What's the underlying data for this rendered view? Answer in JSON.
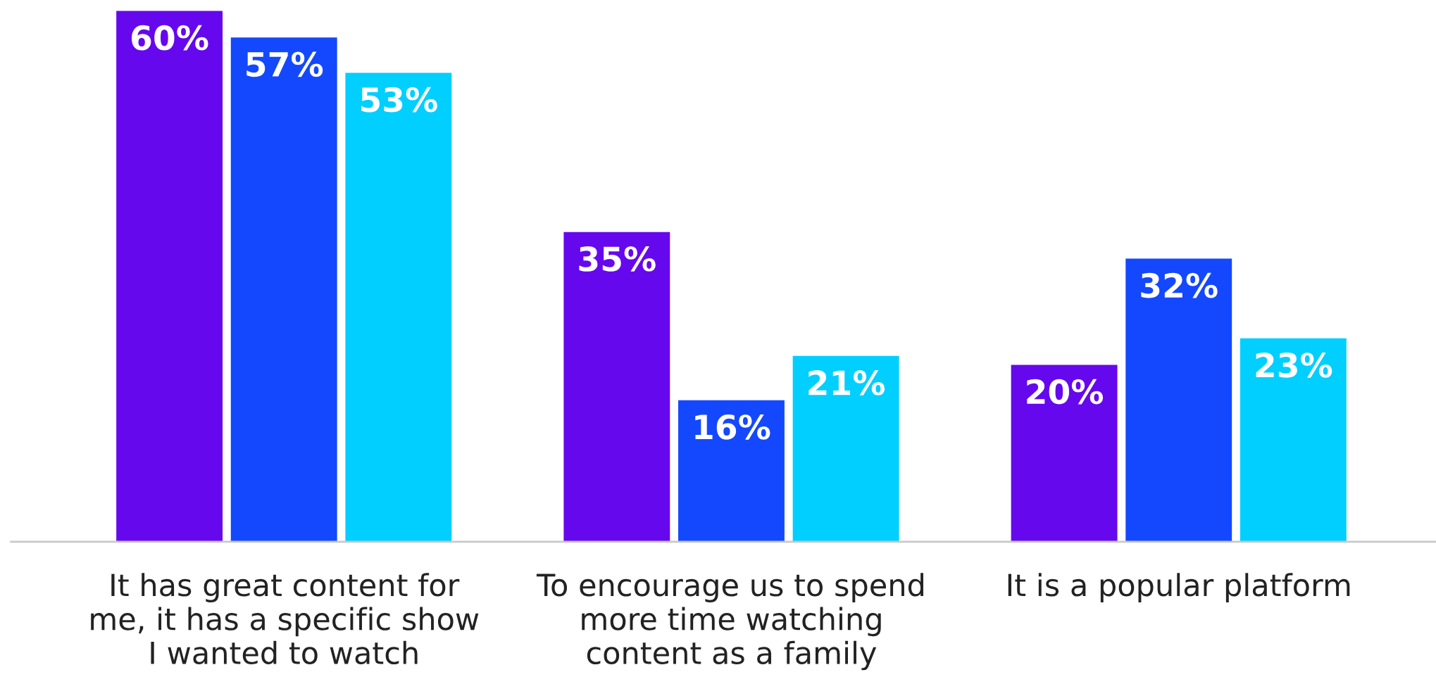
{
  "chart_data": {
    "type": "bar",
    "categories": [
      "It has great content for\nme, it has a specific show\nI wanted to watch",
      "To encourage us to spend\nmore time watching\ncontent as a family",
      "It is a popular platform"
    ],
    "series": [
      {
        "color": "#6608ee",
        "values": [
          60,
          35,
          20
        ],
        "value_labels": [
          "60%",
          "35%",
          "20%"
        ]
      },
      {
        "color": "#1448ff",
        "values": [
          57,
          16,
          32
        ],
        "value_labels": [
          "57%",
          "16%",
          "32%"
        ]
      },
      {
        "color": "#00cfff",
        "values": [
          53,
          21,
          23
        ],
        "value_labels": [
          "53%",
          "21%",
          "23%"
        ]
      }
    ]
  }
}
